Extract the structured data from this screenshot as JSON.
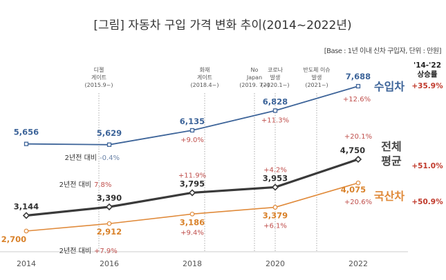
{
  "chart_data": {
    "type": "line",
    "title": "[그림] 자동차 구입 가격 변화 추이(2014~2022년)",
    "subtitle": "[Base : 1년 이내 신차 구입자, 단위 : 만원]",
    "xlabel": "",
    "ylabel": "",
    "unit": "만원",
    "x": [
      "2014",
      "2016",
      "2018",
      "2020",
      "2022"
    ],
    "ylim": [
      2000,
      8500
    ],
    "grid": false,
    "series": [
      {
        "key": "import",
        "name": "수입차",
        "color": "#3d6499",
        "values": [
          5656,
          5629,
          6135,
          6828,
          7688
        ],
        "value_labels": [
          "5,656",
          "5,629",
          "6,135",
          "6,828",
          "7,688"
        ],
        "change_labels": [
          "",
          "-0.4%",
          "+9.0%",
          "+11.3%",
          "+12.6%"
        ],
        "rise_2014_2022": "+35.9%"
      },
      {
        "key": "overall",
        "name": "전체 평균",
        "name_lines": [
          "전체",
          "평균"
        ],
        "color": "#3a3a3a",
        "values": [
          3144,
          3390,
          3795,
          3953,
          4750
        ],
        "value_labels": [
          "3,144",
          "3,390",
          "3,795",
          "3,953",
          "4,750"
        ],
        "change_labels": [
          "",
          "7.8%",
          "+11.9%",
          "+4.2%",
          "+20.1%"
        ],
        "rise_2014_2022": "+51.0%"
      },
      {
        "key": "domestic",
        "name": "국산차",
        "color": "#e08a3a",
        "values": [
          2700,
          2912,
          3186,
          3379,
          4075
        ],
        "value_labels": [
          "2,700",
          "2,912",
          "3,186",
          "3,379",
          "4,075"
        ],
        "change_labels": [
          "",
          "+7.9%",
          "+9.4%",
          "+6.1%",
          "+20.6%"
        ],
        "rise_2014_2022": "+50.9%"
      }
    ],
    "compare_prefix": "2년전 대비",
    "rise_header": [
      "'14-'22",
      "상승률"
    ],
    "annotations": [
      {
        "at": 2015.75,
        "lines": [
          "디젤",
          "게이트",
          "(2015.9~)"
        ]
      },
      {
        "at": 2018.3,
        "lines": [
          "화재",
          "게이트",
          "(2018.4~)"
        ]
      },
      {
        "at": 2019.5,
        "lines": [
          "No",
          "Japan",
          "(2019. 7~)"
        ]
      },
      {
        "at": 2020.0,
        "lines": [
          "코로나",
          "발생",
          "(2020.1~)"
        ]
      },
      {
        "at": 2021.0,
        "lines": [
          "반도체 이슈",
          "발생",
          "(2021~)"
        ]
      }
    ],
    "legend": "right"
  }
}
